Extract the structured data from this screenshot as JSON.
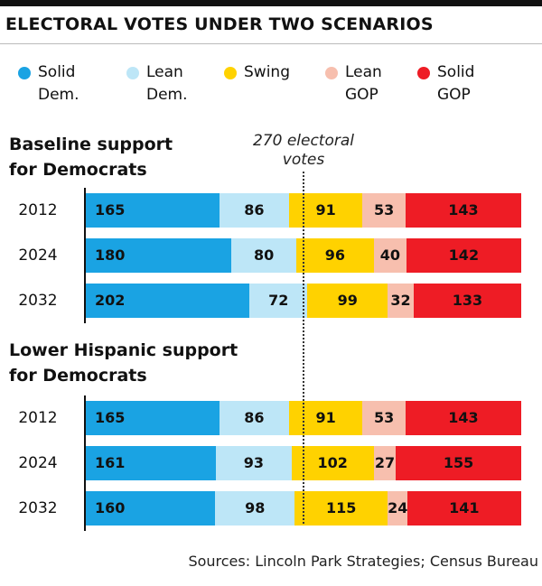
{
  "title": "ELECTORAL VOTES UNDER TWO SCENARIOS",
  "legend": [
    {
      "line1": "Solid",
      "line2": "Dem.",
      "color": "#1aa3e3"
    },
    {
      "line1": "Lean",
      "line2": "Dem.",
      "color": "#bde6f7"
    },
    {
      "line1": "Swing",
      "line2": "",
      "color": "#ffd200"
    },
    {
      "line1": "Lean",
      "line2": "GOP",
      "color": "#f7bfae"
    },
    {
      "line1": "Solid",
      "line2": "GOP",
      "color": "#ee1c25"
    }
  ],
  "threshold": {
    "line1": "270 electoral",
    "line2": "votes",
    "value": 270
  },
  "source": "Sources: Lincoln Park Strategies; Census Bureau",
  "chart_data": [
    {
      "type": "bar",
      "orientation": "horizontal-stacked",
      "title_line1": "Baseline support",
      "title_line2": "for Democrats",
      "categories": [
        "2012",
        "2024",
        "2032"
      ],
      "series": [
        {
          "name": "Solid Dem.",
          "values": [
            165,
            180,
            202
          ]
        },
        {
          "name": "Lean Dem.",
          "values": [
            86,
            80,
            72
          ]
        },
        {
          "name": "Swing",
          "values": [
            91,
            96,
            99
          ]
        },
        {
          "name": "Lean GOP",
          "values": [
            53,
            40,
            32
          ]
        },
        {
          "name": "Solid GOP",
          "values": [
            143,
            142,
            133
          ]
        }
      ],
      "xlim": [
        0,
        538
      ]
    },
    {
      "type": "bar",
      "orientation": "horizontal-stacked",
      "title_line1": "Lower Hispanic support",
      "title_line2": "for Democrats",
      "categories": [
        "2012",
        "2024",
        "2032"
      ],
      "series": [
        {
          "name": "Solid Dem.",
          "values": [
            165,
            161,
            160
          ]
        },
        {
          "name": "Lean Dem.",
          "values": [
            86,
            93,
            98
          ]
        },
        {
          "name": "Swing",
          "values": [
            91,
            102,
            115
          ]
        },
        {
          "name": "Lean GOP",
          "values": [
            53,
            27,
            24
          ]
        },
        {
          "name": "Solid GOP",
          "values": [
            143,
            155,
            141
          ]
        }
      ],
      "xlim": [
        0,
        538
      ]
    }
  ]
}
